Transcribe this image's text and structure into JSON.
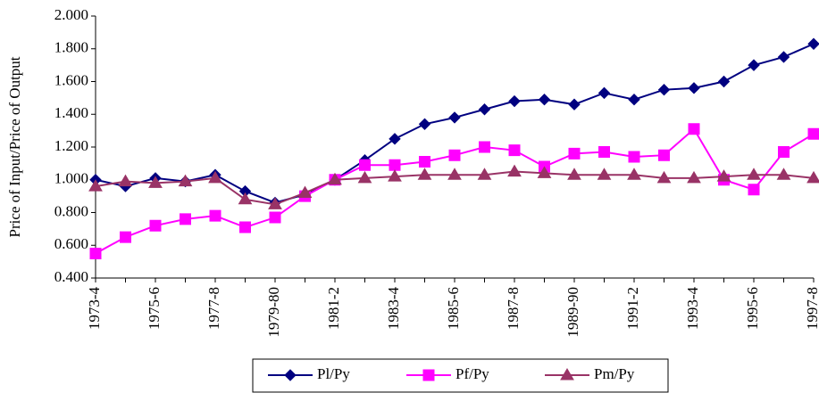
{
  "chart_data": {
    "type": "line",
    "y_label": "Price of Input/Price of Output",
    "categories": [
      "1973-4",
      null,
      "1975-6",
      null,
      "1977-8",
      null,
      "1979-80",
      null,
      "1981-2",
      null,
      "1983-4",
      null,
      "1985-6",
      null,
      "1987-8",
      null,
      "1989-90",
      null,
      "1991-2",
      null,
      "1993-4",
      null,
      "1995-6",
      null,
      "1997-8"
    ],
    "series": [
      {
        "name": "Pl/Py",
        "color": "#000080",
        "marker": "diamond",
        "values": [
          1.0,
          0.96,
          1.01,
          0.99,
          1.03,
          0.93,
          0.86,
          0.91,
          1.0,
          1.12,
          1.25,
          1.34,
          1.38,
          1.43,
          1.48,
          1.49,
          1.46,
          1.53,
          1.49,
          1.55,
          1.56,
          1.6,
          1.7,
          1.75,
          1.83
        ]
      },
      {
        "name": "Pf/Py",
        "color": "#FF00FF",
        "marker": "square",
        "values": [
          0.55,
          0.65,
          0.72,
          0.76,
          0.78,
          0.71,
          0.77,
          0.9,
          1.0,
          1.09,
          1.09,
          1.11,
          1.15,
          1.2,
          1.18,
          1.08,
          1.16,
          1.17,
          1.14,
          1.15,
          1.31,
          1.0,
          0.94,
          1.17,
          1.28
        ]
      },
      {
        "name": "Pm/Py",
        "color": "#993366",
        "marker": "triangle",
        "values": [
          0.96,
          0.99,
          0.98,
          0.99,
          1.01,
          0.88,
          0.85,
          0.92,
          1.0,
          1.01,
          1.02,
          1.03,
          1.03,
          1.03,
          1.05,
          1.04,
          1.03,
          1.03,
          1.03,
          1.01,
          1.01,
          1.02,
          1.03,
          1.03,
          1.01
        ]
      }
    ],
    "ylim": [
      0.4,
      2.0
    ],
    "yticks": [
      {
        "value": 0.4,
        "label": "0.400"
      },
      {
        "value": 0.6,
        "label": "0.600"
      },
      {
        "value": 0.8,
        "label": "0.800"
      },
      {
        "value": 1.0,
        "label": "1.000"
      },
      {
        "value": 1.2,
        "label": "1.200"
      },
      {
        "value": 1.4,
        "label": "1.400"
      },
      {
        "value": 1.6,
        "label": "1.600"
      },
      {
        "value": 1.8,
        "label": "1.800"
      },
      {
        "value": 2.0,
        "label": "2.000"
      }
    ],
    "grid": false,
    "legend": "bottom"
  }
}
